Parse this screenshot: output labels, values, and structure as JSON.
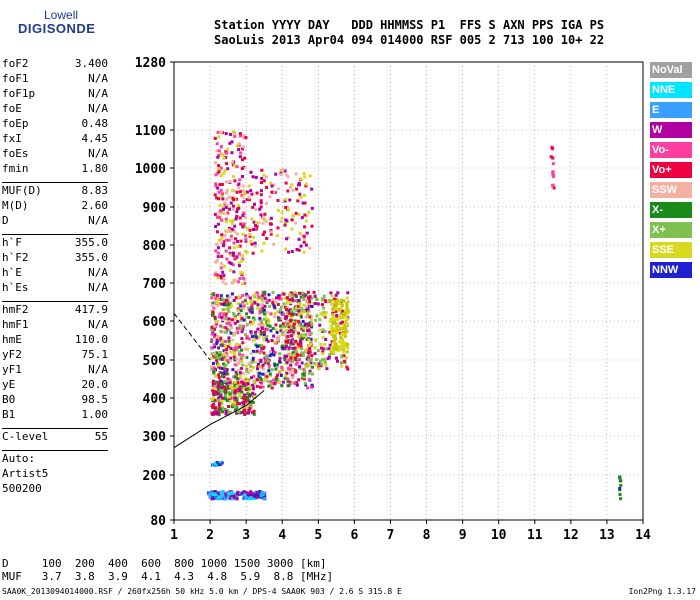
{
  "logo": {
    "line1": "Lowell",
    "line2": "DIGISONDE"
  },
  "header": {
    "line1": "Station YYYY DAY   DDD HHMMSS P1  FFS S AXN PPS IGA PS",
    "line2": "SaoLuis 2013 Apr04 094 014000 RSF 005 2 713 100 10+ 22"
  },
  "params": {
    "group1": [
      {
        "k": "foF2",
        "v": "3.400"
      },
      {
        "k": "foF1",
        "v": "N/A"
      },
      {
        "k": "foF1p",
        "v": "N/A"
      },
      {
        "k": "foE",
        "v": "N/A"
      },
      {
        "k": "foEp",
        "v": "0.48"
      },
      {
        "k": "fxI",
        "v": "4.45"
      },
      {
        "k": "foEs",
        "v": "N/A"
      },
      {
        "k": "fmin",
        "v": "1.80"
      }
    ],
    "group2": [
      {
        "k": "MUF(D)",
        "v": "8.83"
      },
      {
        "k": "M(D)",
        "v": "2.60"
      },
      {
        "k": "D",
        "v": "N/A"
      }
    ],
    "group3": [
      {
        "k": "h`F",
        "v": "355.0"
      },
      {
        "k": "h`F2",
        "v": "355.0"
      },
      {
        "k": "h`E",
        "v": "N/A"
      },
      {
        "k": "h`Es",
        "v": "N/A"
      }
    ],
    "group4": [
      {
        "k": "hmF2",
        "v": "417.9"
      },
      {
        "k": "hmF1",
        "v": "N/A"
      },
      {
        "k": "hmE",
        "v": "110.0"
      },
      {
        "k": "yF2",
        "v": "75.1"
      },
      {
        "k": "yF1",
        "v": "N/A"
      },
      {
        "k": "yE",
        "v": "20.0"
      },
      {
        "k": "B0",
        "v": "98.5"
      },
      {
        "k": "B1",
        "v": "1.00"
      }
    ],
    "clevel": {
      "k": "C-level",
      "v": "55"
    }
  },
  "auto": {
    "line1": "Auto:",
    "line2": "Artist5",
    "line3": "500200"
  },
  "legend": [
    {
      "label": "NoVal",
      "color": "#a0a0a0"
    },
    {
      "label": "NNE",
      "color": "#00e5ff"
    },
    {
      "label": "E",
      "color": "#3aa0ff"
    },
    {
      "label": "W",
      "color": "#b000a0"
    },
    {
      "label": "Vo-",
      "color": "#ff3fa0"
    },
    {
      "label": "Vo+",
      "color": "#ee0040"
    },
    {
      "label": "SSW",
      "color": "#f4b0a0"
    },
    {
      "label": "X-",
      "color": "#1a8a1a"
    },
    {
      "label": "X+",
      "color": "#80c050"
    },
    {
      "label": "SSE",
      "color": "#d8d820"
    },
    {
      "label": "NNW",
      "color": "#2020d0"
    }
  ],
  "chart_data": {
    "type": "scatter",
    "x_ticks": [
      "1",
      "2",
      "3",
      "4",
      "5",
      "6",
      "7",
      "8",
      "9",
      "10",
      "11",
      "12",
      "13",
      "14"
    ],
    "y_ticks": [
      "80",
      "200",
      "300",
      "400",
      "500",
      "600",
      "700",
      "800",
      "900",
      "1000",
      "1100",
      "1280"
    ],
    "xlim": [
      1,
      14
    ],
    "ylim": [
      80,
      1280
    ],
    "trace_points": [
      [
        1.0,
        270
      ],
      [
        2.0,
        330
      ],
      [
        3.0,
        380
      ],
      [
        3.5,
        420
      ]
    ],
    "dashed_points": [
      [
        1.0,
        620
      ],
      [
        1.5,
        560
      ],
      [
        2.0,
        500
      ]
    ]
  },
  "footer": {
    "line1": "D     100  200  400  600  800 1000 1500 3000 [km]",
    "line2": "MUF   3.7  3.8  3.9  4.1  4.3  4.8  5.9  8.8 [MHz]"
  },
  "file_line": "SAA0K_2013094014000.RSF / 260fx256h 50 kHz 5.0 km / DPS-4 SAA0K 903 / 2.6 S 315.8 E",
  "version": "Ion2Png 1.3.17"
}
